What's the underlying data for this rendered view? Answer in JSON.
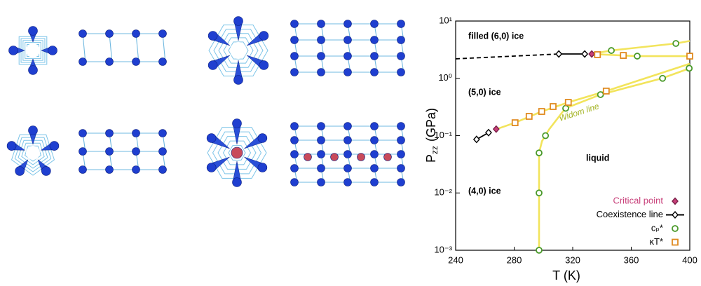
{
  "chart_data": {
    "type": "line",
    "x_label": "T (K)",
    "y_label": "P",
    "y_label_subscript": "zz",
    "y_label_unit": "(GPa)",
    "xlim": [
      240,
      400
    ],
    "xticks": [
      240,
      280,
      320,
      360,
      400
    ],
    "ylim": [
      0.001,
      10
    ],
    "log_y": true,
    "yticks": [
      {
        "value": 0.001,
        "label": "10⁻³"
      },
      {
        "value": 0.01,
        "label": "10⁻²"
      },
      {
        "value": 0.1,
        "label": "10⁻¹"
      },
      {
        "value": 1,
        "label": "10⁰"
      },
      {
        "value": 10,
        "label": "10¹"
      }
    ],
    "annotations": [
      "filled (6,0) ice",
      "(5,0) ice",
      "(4,0) ice",
      "liquid",
      "Widom line"
    ],
    "series": [
      {
        "color": "#f2e45c",
        "line": "solid",
        "marker": "none",
        "x": [
          297,
          297,
          299,
          304,
          315,
          339,
          381,
          400
        ],
        "values": [
          0.001,
          0.05,
          0.08,
          0.13,
          0.3,
          0.52,
          1.0,
          1.5
        ]
      },
      {
        "color": "#f2e45c",
        "line": "solid",
        "marker": "none",
        "x": [
          268,
          280.6,
          298.8,
          317,
          342.9,
          400
        ],
        "values": [
          0.13,
          0.168,
          0.264,
          0.381,
          0.6,
          1.8
        ]
      },
      {
        "color": "#f2e45c",
        "line": "solid",
        "marker": "none",
        "x": [
          333,
          346,
          390.5,
          400
        ],
        "values": [
          2.66,
          3.06,
          4.06,
          4.5
        ]
      },
      {
        "color": "#f2e45c",
        "line": "solid",
        "marker": "none",
        "x": [
          333,
          364,
          400
        ],
        "values": [
          2.66,
          2.44,
          2.44
        ]
      },
      {
        "color": "#000000",
        "line": "dashed",
        "marker": "none",
        "x": [
          240,
          310.5
        ],
        "values": [
          2.19,
          2.66
        ]
      },
      {
        "name": "Critical point",
        "color": "#c8407a",
        "line": "none",
        "marker": "diamond",
        "x": [
          267.7,
          333
        ],
        "values": [
          0.13,
          2.66
        ]
      },
      {
        "name": "Coexistence line",
        "color": "#000000",
        "line": "solid",
        "marker": "diamond",
        "x": [
          254.3,
          262.5,
          null,
          310.5,
          328.2
        ],
        "values": [
          0.086,
          0.113,
          null,
          2.66,
          2.66
        ]
      },
      {
        "name": "cₚ*",
        "color": "#4a9a2a",
        "line": "none",
        "marker": "circle",
        "x": [
          297,
          297,
          297,
          301.4,
          315.2,
          339,
          381.4,
          399.6,
          346.4,
          364.1,
          390.5
        ],
        "values": [
          0.001,
          0.01,
          0.05,
          0.1,
          0.3,
          0.52,
          1.0,
          1.5,
          3.06,
          2.44,
          4.06
        ]
      },
      {
        "name": "κT*",
        "color": "#e08a20",
        "line": "none",
        "marker": "square",
        "x": [
          280.6,
          290.2,
          298.8,
          306.6,
          317,
          342.9,
          336.9,
          354.6,
          400
        ],
        "values": [
          0.168,
          0.217,
          0.264,
          0.322,
          0.381,
          0.6,
          2.59,
          2.51,
          2.44
        ]
      }
    ]
  }
}
